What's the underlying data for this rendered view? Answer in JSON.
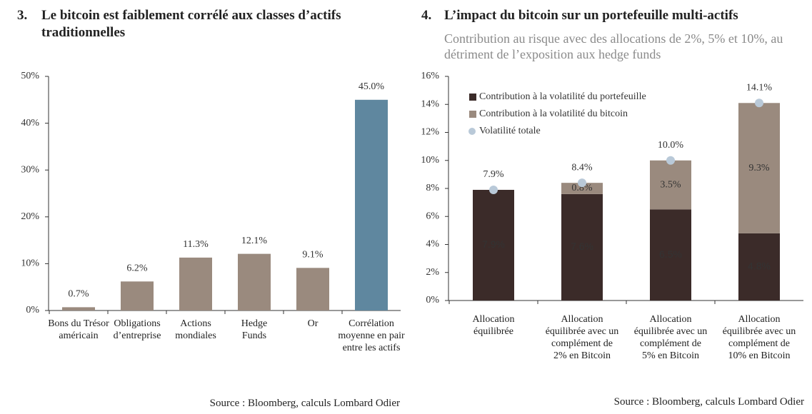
{
  "chart_data": [
    {
      "type": "bar",
      "number": "3.",
      "title": "Le bitcoin est faiblement corrélé aux classes d’actifs traditionnelles",
      "categories": [
        "Bons du Trésor\naméricain",
        "Obligations\nd’entreprise",
        "Actions\nmondiales",
        "Hedge\nFunds",
        "Or",
        "Corrélation\nmoyenne en pair\nentre les actifs"
      ],
      "values": [
        0.7,
        6.2,
        11.3,
        12.1,
        9.1,
        45.0
      ],
      "value_labels": [
        "0.7%",
        "6.2%",
        "11.3%",
        "12.1%",
        "9.1%",
        "45.0%"
      ],
      "colors": [
        "#9a8a7e",
        "#9a8a7e",
        "#9a8a7e",
        "#9a8a7e",
        "#9a8a7e",
        "#5f879f"
      ],
      "ylim": [
        0,
        50
      ],
      "yticks": [
        {
          "value": 0,
          "label": "0%"
        },
        {
          "value": 10,
          "label": "10%"
        },
        {
          "value": 20,
          "label": "20%"
        },
        {
          "value": 30,
          "label": "30%"
        },
        {
          "value": 40,
          "label": "40%"
        },
        {
          "value": 50,
          "label": "50%"
        }
      ],
      "source": "Source : Bloomberg, calculs Lombard Odier"
    },
    {
      "type": "stacked_bar",
      "number": "4.",
      "title": "L’impact du bitcoin sur un portefeuille multi-actifs",
      "subtitle": "Contribution au risque avec des allocations de 2%, 5% et 10%, au détriment de l’exposition aux hedge funds",
      "categories": [
        "Allocation\néquilibrée",
        "Allocation\néquilibrée avec un\ncomplément de\n2% en Bitcoin",
        "Allocation\néquilibrée avec un\ncomplément de\n5% en Bitcoin",
        "Allocation\néquilibrée avec un\ncomplément de\n10% en Bitcoin"
      ],
      "series": [
        {
          "name": "Contribution à la volatilité du portefeuille",
          "color": "#3b2b29",
          "values": [
            7.9,
            7.6,
            6.5,
            4.8
          ],
          "value_labels": [
            "7.9%",
            "7.6%",
            "6.5%",
            "4.8%"
          ]
        },
        {
          "name": "Contribution à la volatilité du bitcoin",
          "color": "#9a8a7e",
          "values": [
            null,
            0.8,
            3.5,
            9.3
          ],
          "value_labels": [
            null,
            "0.8%",
            "3.5%",
            "9.3%"
          ]
        },
        {
          "name": "Volatilité totale",
          "color": "#b9c9d8",
          "type": "point",
          "values": [
            7.9,
            8.4,
            10.0,
            14.1
          ],
          "value_labels": [
            "7.9%",
            "8.4%",
            "10.0%",
            "14.1%"
          ]
        }
      ],
      "legend": "upper left",
      "ylim": [
        0,
        16
      ],
      "yticks": [
        {
          "value": 0,
          "label": "0%"
        },
        {
          "value": 2,
          "label": "2%"
        },
        {
          "value": 4,
          "label": "4%"
        },
        {
          "value": 6,
          "label": "6%"
        },
        {
          "value": 8,
          "label": "8%"
        },
        {
          "value": 10,
          "label": "10%"
        },
        {
          "value": 12,
          "label": "12%"
        },
        {
          "value": 14,
          "label": "14%"
        },
        {
          "value": 16,
          "label": "16%"
        }
      ],
      "source": "Source : Bloomberg, calculs Lombard Odier"
    }
  ]
}
